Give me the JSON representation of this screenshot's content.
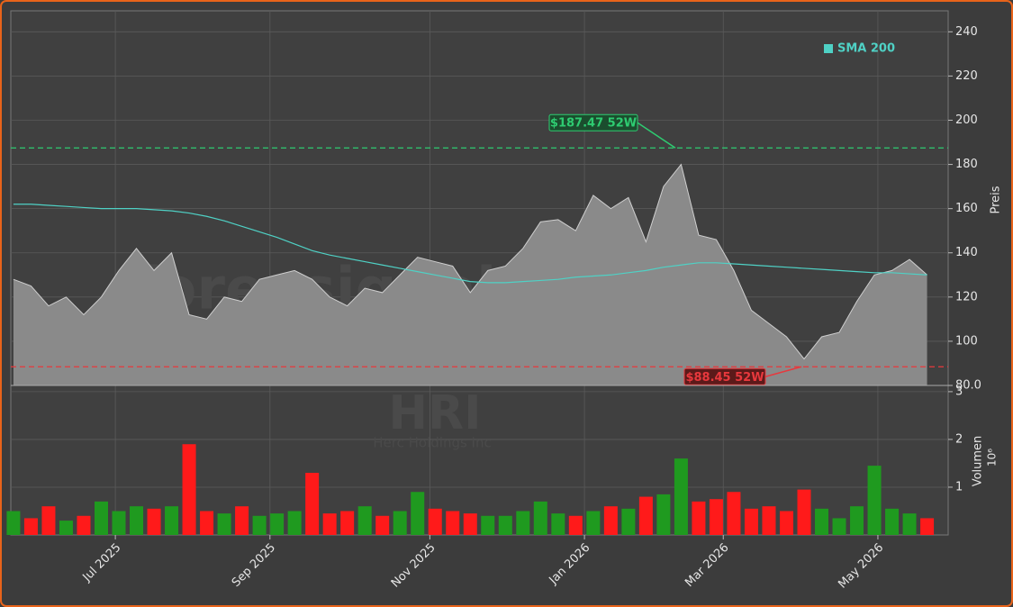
{
  "chart_data": [
    {
      "type": "area",
      "ylabel": "Preis",
      "watermark": "forexsignale.trade",
      "ticker": "HRI",
      "company": "Herc Holdings Inc",
      "x": [
        0,
        1,
        2,
        3,
        4,
        5,
        6,
        7,
        8,
        9,
        10,
        11,
        12,
        13,
        14,
        15,
        16,
        17,
        18,
        19,
        20,
        21,
        22,
        23,
        24,
        25,
        26,
        27,
        28,
        29,
        30,
        31,
        32,
        33,
        34,
        35,
        36,
        37,
        38,
        39,
        40,
        41,
        42,
        43,
        44,
        45,
        46,
        47,
        48,
        49,
        50,
        51,
        52
      ],
      "values": [
        128,
        125,
        116,
        120,
        112,
        120,
        132,
        142,
        132,
        140,
        112,
        110,
        120,
        118,
        128,
        130,
        132,
        128,
        120,
        116,
        124,
        122,
        130,
        138,
        136,
        134,
        122,
        132,
        134,
        142,
        154,
        155,
        150,
        166,
        160,
        165,
        145,
        170,
        180,
        148,
        146,
        132,
        114,
        108,
        102,
        92,
        102,
        104,
        118,
        130,
        132,
        137,
        130
      ],
      "color": "#8a8a8a",
      "series": [
        {
          "name": "SMA 200",
          "color": "#4fd1c5",
          "values": [
            162,
            162,
            161.5,
            161,
            160.5,
            160,
            160,
            160,
            159.5,
            159,
            158,
            156.5,
            154.5,
            152,
            149.5,
            147,
            144,
            141,
            139,
            137.5,
            136,
            134.5,
            133,
            131.5,
            130,
            128.5,
            127,
            126.5,
            126.5,
            127,
            127.5,
            128,
            129,
            129.5,
            130,
            131,
            132,
            133.5,
            134.5,
            135.5,
            135.5,
            135,
            134.5,
            134,
            133.5,
            133,
            132.5,
            132,
            131.5,
            131,
            131,
            130.5,
            130
          ]
        }
      ],
      "hlines": [
        {
          "value": 187.47,
          "label": "$187.47 52W",
          "color": "#2ecc71"
        },
        {
          "value": 88.45,
          "label": "$88.45 52W",
          "color": "#e8383d"
        }
      ],
      "xlim": [
        -0.15,
        53.2
      ],
      "xticks": [
        {
          "value": 5.8,
          "label": "Jul 2025"
        },
        {
          "value": 14.6,
          "label": "Sep 2025"
        },
        {
          "value": 23.7,
          "label": "Nov 2025"
        },
        {
          "value": 32.5,
          "label": "Jan 2026"
        },
        {
          "value": 40.4,
          "label": "Mar 2026"
        },
        {
          "value": 49.2,
          "label": "May 2026"
        }
      ],
      "ylim": [
        80,
        249.5
      ],
      "yticks": [
        {
          "value": 80,
          "label": "80.0"
        },
        100,
        120,
        140,
        160,
        180,
        200,
        220,
        240
      ],
      "grid": true,
      "legend": "upper right"
    },
    {
      "type": "bar",
      "ylabel": "Volumen",
      "scale_label": "10⁶",
      "values": [
        0.5,
        0.35,
        0.6,
        0.3,
        0.4,
        0.7,
        0.5,
        0.6,
        0.55,
        0.6,
        1.9,
        0.5,
        0.45,
        0.6,
        0.4,
        0.45,
        0.5,
        1.3,
        0.45,
        0.5,
        0.6,
        0.4,
        0.5,
        0.9,
        0.55,
        0.5,
        0.45,
        0.4,
        0.4,
        0.5,
        0.7,
        0.45,
        0.4,
        0.5,
        0.6,
        0.55,
        0.8,
        0.85,
        1.6,
        0.7,
        0.75,
        0.9,
        0.55,
        0.6,
        0.5,
        0.95,
        0.55,
        0.35,
        0.6,
        1.45,
        0.55,
        0.45,
        0.35
      ],
      "up_color": "#1f9a1f",
      "down_color": "#ff1a1a",
      "ylim": [
        0,
        3.13
      ],
      "yticks": [
        1,
        2,
        3
      ],
      "grid": true
    }
  ]
}
